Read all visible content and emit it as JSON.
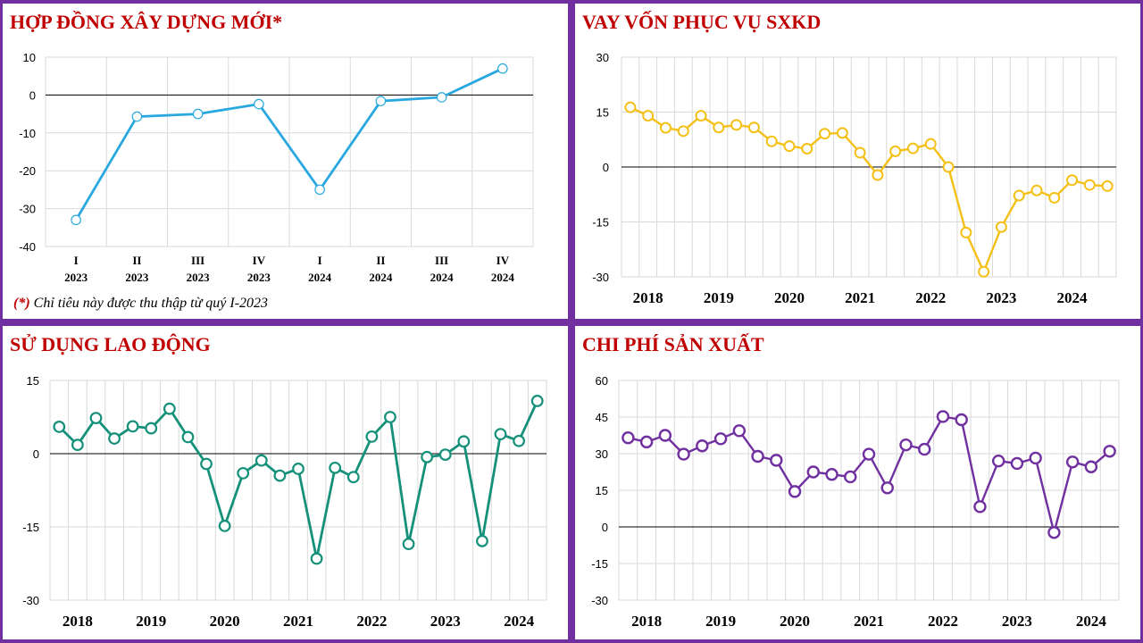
{
  "footnote": {
    "star": "(*)",
    "text": " Chỉ tiêu này được thu thập từ quý I-2023"
  },
  "chart_data": [
    {
      "type": "line",
      "title": "HỢP ĐỒNG XÂY DỰNG MỚI*",
      "color": "#29a8e0",
      "ylim": [
        -40,
        10
      ],
      "yticks": [
        10,
        0,
        -10,
        -20,
        -30,
        -40
      ],
      "grid": true,
      "categories": [
        [
          "I",
          "2023"
        ],
        [
          "II",
          "2023"
        ],
        [
          "III",
          "2023"
        ],
        [
          "IV",
          "2023"
        ],
        [
          "I",
          "2024"
        ],
        [
          "II",
          "2024"
        ],
        [
          "III",
          "2024"
        ],
        [
          "IV",
          "2024"
        ]
      ],
      "values": [
        -33,
        -5.7,
        -5,
        -2.4,
        -25,
        -1.6,
        -0.6,
        7
      ]
    },
    {
      "type": "line",
      "title": "VAY VỐN PHỤC VỤ SXKD",
      "color": "#f5c016",
      "ylim": [
        -30,
        30
      ],
      "yticks": [
        30,
        15,
        0,
        -15,
        -30
      ],
      "grid": true,
      "years": [
        "2018",
        "2019",
        "2020",
        "2021",
        "2022",
        "2023",
        "2024"
      ],
      "values": [
        16.3,
        14,
        10.7,
        9.8,
        14,
        10.8,
        11.5,
        10.8,
        7,
        5.7,
        5,
        9.1,
        9.3,
        3.9,
        -2.2,
        4.3,
        5.1,
        6.3,
        0,
        -17.9,
        -28.6,
        -16.4,
        -7.8,
        -6.4,
        -8.4,
        -3.6,
        -4.9,
        -5.2
      ]
    },
    {
      "type": "line",
      "title": "SỬ DỤNG LAO ĐỘNG",
      "color": "#15917a",
      "ylim": [
        -30,
        15
      ],
      "yticks": [
        15,
        0,
        -15,
        -30
      ],
      "grid": true,
      "years": [
        "2018",
        "2019",
        "2020",
        "2021",
        "2022",
        "2023",
        "2024"
      ],
      "values": [
        5.5,
        1.8,
        7.3,
        3.1,
        5.6,
        5.2,
        9.2,
        3.4,
        -2.1,
        -14.8,
        -4,
        -1.4,
        -4.5,
        -3.1,
        -21.5,
        -2.9,
        -4.8,
        3.5,
        7.5,
        -18.5,
        -0.7,
        -0.2,
        2.5,
        -17.9,
        4,
        2.6,
        10.8
      ]
    },
    {
      "type": "line",
      "title": "CHI PHÍ SẢN XUẤT",
      "color": "#7030a0",
      "ylim": [
        -30,
        60
      ],
      "yticks": [
        60,
        45,
        30,
        15,
        0,
        -15,
        -30
      ],
      "grid": true,
      "years": [
        "2018",
        "2019",
        "2020",
        "2021",
        "2022",
        "2023",
        "2024"
      ],
      "values": [
        36.5,
        34.8,
        37.5,
        29.8,
        33.2,
        36.1,
        39.4,
        28.9,
        27.3,
        14.5,
        22.5,
        21.5,
        20.5,
        29.8,
        16,
        33.6,
        31.8,
        45.2,
        43.9,
        8.3,
        27,
        26,
        28.2,
        -2.3,
        26.6,
        24.6,
        31
      ]
    }
  ]
}
